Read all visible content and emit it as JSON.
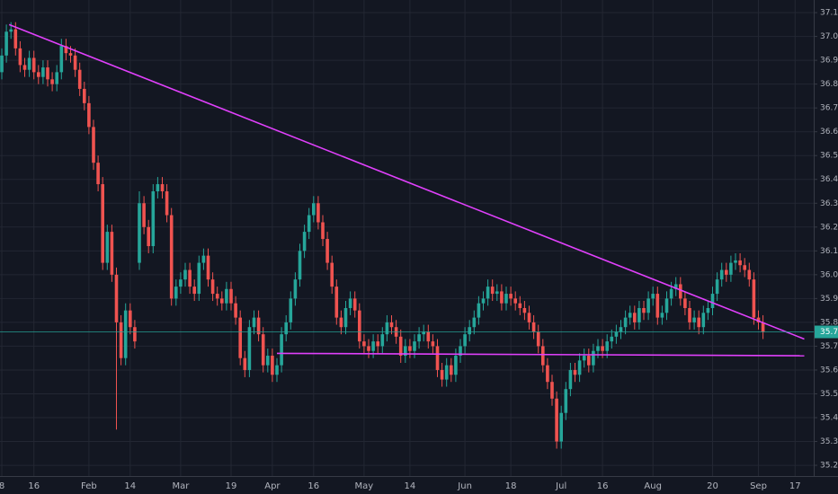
{
  "chart_data": {
    "type": "candlestick",
    "categories": [
      "8",
      null,
      null,
      null,
      null,
      null,
      null,
      "16",
      null,
      null,
      null,
      null,
      null,
      null,
      null,
      null,
      null,
      null,
      null,
      "Feb",
      null,
      null,
      null,
      null,
      null,
      null,
      null,
      null,
      "14",
      null,
      null,
      null,
      null,
      null,
      null,
      null,
      null,
      null,
      null,
      "Mar",
      null,
      null,
      null,
      null,
      null,
      null,
      null,
      null,
      null,
      null,
      "19",
      null,
      null,
      null,
      null,
      null,
      null,
      null,
      null,
      "Apr",
      null,
      null,
      null,
      null,
      null,
      null,
      null,
      null,
      "16",
      null,
      null,
      null,
      null,
      null,
      null,
      null,
      null,
      null,
      null,
      "May",
      null,
      null,
      null,
      null,
      null,
      null,
      null,
      null,
      null,
      "14",
      null,
      null,
      null,
      null,
      null,
      null,
      null,
      null,
      null,
      null,
      null,
      "Jun",
      null,
      null,
      null,
      null,
      null,
      null,
      null,
      null,
      null,
      "18",
      null,
      null,
      null,
      null,
      null,
      null,
      null,
      null,
      null,
      null,
      "Jul",
      null,
      null,
      null,
      null,
      null,
      null,
      null,
      null,
      "16",
      null,
      null,
      null,
      null,
      null,
      null,
      null,
      null,
      null,
      null,
      "Aug",
      null,
      null,
      null,
      null,
      null,
      null,
      null,
      null,
      null,
      null,
      null,
      null,
      "20",
      null,
      null,
      null,
      null,
      null,
      null,
      null,
      null,
      null,
      "Sep",
      null,
      null,
      null,
      null,
      null,
      null,
      null,
      "17",
      null,
      null,
      null
    ],
    "open": [
      36.85,
      36.92,
      37.02,
      37.03,
      36.95,
      36.88,
      36.86,
      36.91,
      36.85,
      36.83,
      36.87,
      36.82,
      36.8,
      36.85,
      36.96,
      36.93,
      36.92,
      36.86,
      36.78,
      36.72,
      36.62,
      36.47,
      36.38,
      36.05,
      36.18,
      36.0,
      35.8,
      35.65,
      35.85,
      35.78,
      36.05,
      36.3,
      36.2,
      36.12,
      36.35,
      36.38,
      36.35,
      36.25,
      35.9,
      35.95,
      35.98,
      36.02,
      35.95,
      35.92,
      36.05,
      36.08,
      35.98,
      35.92,
      35.9,
      35.88,
      35.94,
      35.88,
      35.82,
      35.65,
      35.6,
      35.78,
      35.82,
      35.75,
      35.62,
      35.66,
      35.58,
      35.62,
      35.75,
      35.8,
      35.9,
      35.98,
      36.1,
      36.18,
      36.25,
      36.3,
      36.22,
      36.15,
      36.05,
      35.95,
      35.82,
      35.78,
      35.86,
      35.9,
      35.85,
      35.72,
      35.7,
      35.68,
      35.72,
      35.7,
      35.75,
      35.8,
      35.78,
      35.74,
      35.66,
      35.7,
      35.68,
      35.72,
      35.75,
      35.76,
      35.72,
      35.7,
      35.6,
      35.56,
      35.62,
      35.58,
      35.66,
      35.7,
      35.75,
      35.78,
      35.82,
      35.88,
      35.9,
      35.95,
      35.92,
      35.93,
      35.88,
      35.92,
      35.9,
      35.88,
      35.86,
      35.84,
      35.8,
      35.76,
      35.7,
      35.62,
      35.55,
      35.48,
      35.3,
      35.42,
      35.52,
      35.6,
      35.58,
      35.64,
      35.66,
      35.62,
      35.68,
      35.7,
      35.68,
      35.72,
      35.74,
      35.76,
      35.78,
      35.82,
      35.84,
      35.8,
      35.86,
      35.84,
      35.9,
      35.92,
      35.82,
      35.84,
      35.9,
      35.94,
      35.96,
      35.9,
      35.86,
      35.8,
      35.82,
      35.78,
      35.84,
      35.86,
      35.92,
      35.98,
      36.02,
      36.0,
      36.05,
      36.06,
      36.04,
      36.02,
      35.98,
      35.82,
      35.8,
      null,
      null,
      null,
      null,
      null,
      null,
      null,
      null,
      null,
      null
    ],
    "high": [
      36.95,
      37.05,
      37.06,
      37.06,
      36.98,
      36.91,
      36.94,
      36.94,
      36.88,
      36.9,
      36.9,
      36.85,
      36.88,
      36.99,
      36.99,
      36.96,
      36.95,
      36.89,
      36.81,
      36.75,
      36.65,
      36.5,
      36.41,
      36.21,
      36.21,
      36.03,
      35.83,
      35.88,
      35.88,
      35.81,
      36.35,
      36.33,
      36.23,
      36.38,
      36.41,
      36.41,
      36.38,
      36.28,
      35.98,
      36.01,
      36.05,
      36.05,
      35.98,
      36.08,
      36.11,
      36.11,
      36.01,
      35.95,
      35.93,
      35.97,
      35.97,
      35.91,
      35.85,
      35.68,
      35.81,
      35.85,
      35.85,
      35.78,
      35.69,
      35.69,
      35.65,
      35.78,
      35.83,
      35.93,
      36.01,
      36.13,
      36.21,
      36.28,
      36.33,
      36.33,
      36.25,
      36.18,
      36.08,
      35.98,
      35.85,
      35.89,
      35.93,
      35.93,
      35.88,
      35.75,
      35.73,
      35.75,
      35.75,
      35.78,
      35.83,
      35.83,
      35.81,
      35.77,
      35.73,
      35.73,
      35.75,
      35.78,
      35.79,
      35.79,
      35.75,
      35.73,
      35.63,
      35.65,
      35.65,
      35.69,
      35.73,
      35.78,
      35.81,
      35.85,
      35.91,
      35.93,
      35.98,
      35.98,
      35.96,
      35.96,
      35.95,
      35.95,
      35.93,
      35.91,
      35.89,
      35.87,
      35.83,
      35.79,
      35.73,
      35.65,
      35.58,
      35.51,
      35.45,
      35.55,
      35.63,
      35.63,
      35.67,
      35.69,
      35.69,
      35.71,
      35.73,
      35.73,
      35.75,
      35.77,
      35.79,
      35.81,
      35.85,
      35.87,
      35.87,
      35.89,
      35.89,
      35.93,
      35.95,
      35.95,
      35.87,
      35.93,
      35.97,
      35.99,
      35.99,
      35.93,
      35.89,
      35.85,
      35.85,
      35.87,
      35.89,
      35.95,
      36.01,
      36.05,
      36.05,
      36.08,
      36.09,
      36.09,
      36.07,
      36.05,
      36.01,
      35.85,
      35.83,
      null,
      null,
      null,
      null,
      null,
      null,
      null,
      null,
      null,
      null
    ],
    "low": [
      36.82,
      36.89,
      36.99,
      36.92,
      36.85,
      36.83,
      36.83,
      36.82,
      36.8,
      36.8,
      36.79,
      36.77,
      36.77,
      36.82,
      36.9,
      36.89,
      36.83,
      36.75,
      36.69,
      36.59,
      36.44,
      36.35,
      36.02,
      36.02,
      35.97,
      35.35,
      35.62,
      35.62,
      35.75,
      35.69,
      36.02,
      36.17,
      36.09,
      36.09,
      36.32,
      36.32,
      36.22,
      35.87,
      35.87,
      35.92,
      35.95,
      35.92,
      35.89,
      35.89,
      36.02,
      35.95,
      35.89,
      35.87,
      35.85,
      35.85,
      35.85,
      35.79,
      35.62,
      35.57,
      35.57,
      35.75,
      35.72,
      35.59,
      35.59,
      35.55,
      35.55,
      35.59,
      35.72,
      35.77,
      35.87,
      35.95,
      36.07,
      36.15,
      36.22,
      36.19,
      36.12,
      36.02,
      35.92,
      35.79,
      35.75,
      35.75,
      35.83,
      35.82,
      35.69,
      35.67,
      35.65,
      35.65,
      35.67,
      35.67,
      35.72,
      35.75,
      35.71,
      35.63,
      35.63,
      35.65,
      35.65,
      35.69,
      35.72,
      35.69,
      35.67,
      35.57,
      35.53,
      35.53,
      35.55,
      35.55,
      35.63,
      35.67,
      35.72,
      35.75,
      35.79,
      35.85,
      35.87,
      35.89,
      35.89,
      35.85,
      35.85,
      35.87,
      35.85,
      35.83,
      35.81,
      35.77,
      35.73,
      35.67,
      35.59,
      35.52,
      35.45,
      35.27,
      35.27,
      35.39,
      35.49,
      35.55,
      35.55,
      35.61,
      35.59,
      35.59,
      35.65,
      35.65,
      35.65,
      35.69,
      35.71,
      35.73,
      35.75,
      35.79,
      35.77,
      35.77,
      35.81,
      35.81,
      35.87,
      35.79,
      35.79,
      35.81,
      35.87,
      35.91,
      35.87,
      35.83,
      35.77,
      35.77,
      35.75,
      35.75,
      35.81,
      35.83,
      35.89,
      35.95,
      35.97,
      35.97,
      36.02,
      36.01,
      35.99,
      35.95,
      35.79,
      35.77,
      35.73,
      null,
      null,
      null,
      null,
      null,
      null,
      null,
      null,
      null,
      null
    ],
    "close": [
      36.92,
      37.02,
      37.03,
      36.95,
      36.88,
      36.86,
      36.91,
      36.85,
      36.83,
      36.87,
      36.82,
      36.8,
      36.85,
      36.96,
      36.93,
      36.92,
      36.86,
      36.78,
      36.72,
      36.62,
      36.47,
      36.38,
      36.05,
      36.18,
      36.0,
      35.8,
      35.65,
      35.85,
      35.78,
      35.72,
      36.3,
      36.2,
      36.12,
      36.35,
      36.38,
      36.35,
      36.25,
      35.9,
      35.95,
      35.98,
      36.02,
      35.95,
      35.92,
      36.05,
      36.08,
      35.98,
      35.92,
      35.9,
      35.88,
      35.94,
      35.88,
      35.82,
      35.65,
      35.6,
      35.78,
      35.82,
      35.75,
      35.62,
      35.66,
      35.58,
      35.62,
      35.75,
      35.8,
      35.9,
      35.98,
      36.1,
      36.18,
      36.25,
      36.3,
      36.22,
      36.15,
      36.05,
      35.95,
      35.82,
      35.78,
      35.86,
      35.9,
      35.85,
      35.72,
      35.7,
      35.68,
      35.72,
      35.7,
      35.75,
      35.8,
      35.78,
      35.74,
      35.66,
      35.7,
      35.68,
      35.72,
      35.75,
      35.76,
      35.72,
      35.7,
      35.6,
      35.56,
      35.62,
      35.58,
      35.66,
      35.7,
      35.75,
      35.78,
      35.82,
      35.88,
      35.9,
      35.95,
      35.92,
      35.93,
      35.88,
      35.92,
      35.9,
      35.88,
      35.86,
      35.84,
      35.8,
      35.76,
      35.7,
      35.62,
      35.55,
      35.48,
      35.3,
      35.42,
      35.52,
      35.6,
      35.58,
      35.64,
      35.66,
      35.62,
      35.68,
      35.7,
      35.68,
      35.72,
      35.74,
      35.76,
      35.78,
      35.82,
      35.84,
      35.8,
      35.86,
      35.84,
      35.9,
      35.92,
      35.82,
      35.84,
      35.9,
      35.94,
      35.96,
      35.9,
      35.86,
      35.8,
      35.82,
      35.78,
      35.84,
      35.86,
      35.92,
      35.98,
      36.02,
      36.0,
      36.05,
      36.06,
      36.04,
      36.02,
      35.98,
      35.82,
      35.8,
      35.76,
      null,
      null,
      null,
      null,
      null,
      null,
      null,
      null,
      null,
      null
    ],
    "up_color": "#26a69a",
    "down_color": "#ef5350",
    "ylim": [
      35.155,
      37.153
    ],
    "yticks": [
      {
        "value": 35.2,
        "label": "35.20"
      },
      {
        "value": 35.3,
        "label": "35.30"
      },
      {
        "value": 35.4,
        "label": "35.40"
      },
      {
        "value": 35.5,
        "label": "35.50"
      },
      {
        "value": 35.6,
        "label": "35.60"
      },
      {
        "value": 35.7,
        "label": "35.70"
      },
      {
        "value": 35.8,
        "label": "35.80"
      },
      {
        "value": 35.9,
        "label": "35.90"
      },
      {
        "value": 36.0,
        "label": "36.00"
      },
      {
        "value": 36.1,
        "label": "36.10"
      },
      {
        "value": 36.2,
        "label": "36.20"
      },
      {
        "value": 36.3,
        "label": "36.30"
      },
      {
        "value": 36.4,
        "label": "36.40"
      },
      {
        "value": 36.5,
        "label": "36.50"
      },
      {
        "value": 36.6,
        "label": "36.60"
      },
      {
        "value": 36.7,
        "label": "36.70"
      },
      {
        "value": 36.8,
        "label": "36.80"
      },
      {
        "value": 36.9,
        "label": "36.90"
      },
      {
        "value": 37.0,
        "label": "37.00"
      },
      {
        "value": 37.1,
        "label": "37.10"
      }
    ],
    "grid": true,
    "trend_lines": [
      {
        "points": [
          [
            1.6,
            37.05
          ],
          [
            175,
            35.73
          ]
        ],
        "color": "#e040fb"
      },
      {
        "points": [
          [
            60,
            35.67
          ],
          [
            175,
            35.66
          ]
        ],
        "color": "#e040fb"
      }
    ],
    "last_price": 35.76,
    "last_price_color": "#26a69a"
  }
}
